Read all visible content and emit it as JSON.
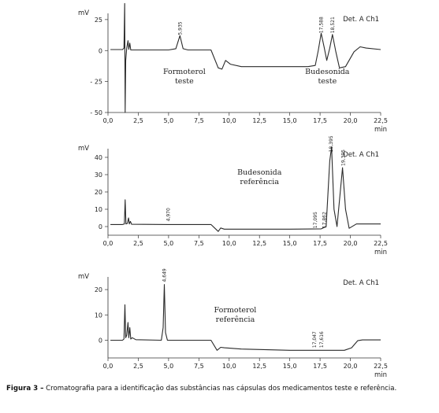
{
  "chart_data": [
    {
      "type": "line",
      "y_unit": "mV",
      "x_unit": "min",
      "detector": "Det. A Ch1",
      "xlim": [
        0,
        22.5
      ],
      "ylim": [
        -50,
        30
      ],
      "x_ticks": [
        "0,0",
        "2,5",
        "5,0",
        "7,5",
        "10,0",
        "12,5",
        "15,0",
        "17,5",
        "20,0",
        "22,5"
      ],
      "y_ticks": [
        {
          "value": 25,
          "label": "25"
        },
        {
          "value": 0,
          "label": "0"
        },
        {
          "value": -25,
          "label": "- 25"
        },
        {
          "value": -50,
          "label": "- 50"
        }
      ],
      "annotations": [
        {
          "lines": [
            "Formoterol",
            "teste"
          ],
          "x": 6.3,
          "y": -19
        },
        {
          "lines": [
            "Budesonida",
            "teste"
          ],
          "x": 18.1,
          "y": -19
        }
      ],
      "peak_labels": [
        {
          "text": "5,935",
          "x": 5.935,
          "y": 12.5
        },
        {
          "text": "17,588",
          "x": 17.588,
          "y": 14
        },
        {
          "text": "18,521",
          "x": 18.521,
          "y": 14
        }
      ],
      "series": [
        {
          "points": [
            [
              0.2,
              0.8
            ],
            [
              1.2,
              0.8
            ],
            [
              1.32,
              2
            ],
            [
              1.38,
              38
            ],
            [
              1.42,
              -50
            ],
            [
              1.46,
              -8
            ],
            [
              1.55,
              2
            ],
            [
              1.65,
              8
            ],
            [
              1.72,
              1
            ],
            [
              1.8,
              6
            ],
            [
              1.88,
              0.5
            ],
            [
              2.3,
              0.5
            ],
            [
              3.5,
              0.5
            ],
            [
              5.0,
              0.5
            ],
            [
              5.6,
              1.5
            ],
            [
              5.935,
              12
            ],
            [
              6.2,
              1.5
            ],
            [
              6.6,
              0.5
            ],
            [
              8.5,
              0.5
            ],
            [
              9.1,
              -14
            ],
            [
              9.4,
              -15
            ],
            [
              9.7,
              -8
            ],
            [
              10.1,
              -11
            ],
            [
              11,
              -13
            ],
            [
              14,
              -13
            ],
            [
              16.5,
              -13
            ],
            [
              17.1,
              -12
            ],
            [
              17.35,
              0
            ],
            [
              17.588,
              14
            ],
            [
              17.85,
              2
            ],
            [
              18.05,
              -8
            ],
            [
              18.3,
              2
            ],
            [
              18.521,
              13
            ],
            [
              18.8,
              -1
            ],
            [
              19.1,
              -14
            ],
            [
              19.6,
              -13
            ],
            [
              20.3,
              -1
            ],
            [
              20.8,
              3
            ],
            [
              21.3,
              2
            ],
            [
              22.5,
              0.8
            ]
          ]
        }
      ]
    },
    {
      "type": "line",
      "y_unit": "mV",
      "x_unit": "min",
      "detector": "Det. A Ch1",
      "xlim": [
        0,
        22.5
      ],
      "ylim": [
        -5,
        45
      ],
      "x_ticks": [
        "0,0",
        "2,5",
        "5,0",
        "7,5",
        "10,0",
        "12,5",
        "15,0",
        "17,5",
        "20,0",
        "22,5"
      ],
      "y_ticks": [
        {
          "value": 40,
          "label": "40"
        },
        {
          "value": 30,
          "label": "30"
        },
        {
          "value": 20,
          "label": "20"
        },
        {
          "value": 10,
          "label": "10"
        },
        {
          "value": 0,
          "label": "0"
        }
      ],
      "annotations": [
        {
          "lines": [
            "Budesonida",
            "referência"
          ],
          "x": 12.5,
          "y": 30
        }
      ],
      "peak_labels": [
        {
          "text": "4,970",
          "x": 4.97,
          "y": 3
        },
        {
          "text": "17,095",
          "x": 17.095,
          "y": -1
        },
        {
          "text": "17,862",
          "x": 17.862,
          "y": -1
        },
        {
          "text": "18,395",
          "x": 18.395,
          "y": 43
        },
        {
          "text": "19,395",
          "x": 19.395,
          "y": 35
        }
      ],
      "series": [
        {
          "points": [
            [
              0.2,
              1.2
            ],
            [
              1.2,
              1.2
            ],
            [
              1.35,
              1.5
            ],
            [
              1.42,
              15.5
            ],
            [
              1.48,
              1.5
            ],
            [
              1.6,
              1.8
            ],
            [
              1.7,
              5
            ],
            [
              1.76,
              1.5
            ],
            [
              1.85,
              3
            ],
            [
              1.95,
              1.3
            ],
            [
              4.97,
              1.2
            ],
            [
              8.5,
              1.2
            ],
            [
              9.1,
              -2.8
            ],
            [
              9.3,
              -0.8
            ],
            [
              9.6,
              -1.5
            ],
            [
              10.5,
              -1.5
            ],
            [
              15,
              -1.5
            ],
            [
              17.6,
              -1.3
            ],
            [
              18.0,
              0
            ],
            [
              18.3,
              38
            ],
            [
              18.45,
              46
            ],
            [
              18.65,
              10
            ],
            [
              18.9,
              0
            ],
            [
              19.1,
              15
            ],
            [
              19.35,
              34
            ],
            [
              19.6,
              10
            ],
            [
              19.9,
              -1
            ],
            [
              20.5,
              1.5
            ],
            [
              22.5,
              1.5
            ]
          ]
        }
      ]
    },
    {
      "type": "line",
      "y_unit": "mV",
      "x_unit": "min",
      "detector": "Det. A Ch1",
      "xlim": [
        0,
        22.5
      ],
      "ylim": [
        -7,
        25
      ],
      "x_ticks": [
        "0,0",
        "2,5",
        "5,0",
        "7,5",
        "10,0",
        "12,5",
        "15,0",
        "17,5",
        "20,0",
        "22,5"
      ],
      "y_ticks": [
        {
          "value": 20,
          "label": "20"
        },
        {
          "value": 10,
          "label": "10"
        },
        {
          "value": 0,
          "label": "0"
        }
      ],
      "annotations": [
        {
          "lines": [
            "Formoterol",
            "referência"
          ],
          "x": 10.5,
          "y": 11
        }
      ],
      "peak_labels": [
        {
          "text": "4,649",
          "x": 4.649,
          "y": 23
        },
        {
          "text": "17,047",
          "x": 17.047,
          "y": -3
        },
        {
          "text": "17,616",
          "x": 17.616,
          "y": -3
        }
      ],
      "series": [
        {
          "points": [
            [
              0.2,
              0
            ],
            [
              1.2,
              0
            ],
            [
              1.32,
              0.5
            ],
            [
              1.4,
              14
            ],
            [
              1.46,
              1
            ],
            [
              1.55,
              2
            ],
            [
              1.65,
              7
            ],
            [
              1.72,
              1
            ],
            [
              1.8,
              5
            ],
            [
              1.88,
              0.5
            ],
            [
              2.0,
              1
            ],
            [
              2.3,
              0.2
            ],
            [
              4.4,
              0
            ],
            [
              4.55,
              5
            ],
            [
              4.649,
              22
            ],
            [
              4.75,
              3
            ],
            [
              4.9,
              0
            ],
            [
              8.5,
              0
            ],
            [
              9.0,
              -4
            ],
            [
              9.3,
              -2.8
            ],
            [
              9.6,
              -3
            ],
            [
              11,
              -3.5
            ],
            [
              15,
              -4
            ],
            [
              19.5,
              -4
            ],
            [
              20.1,
              -3
            ],
            [
              20.6,
              -0.2
            ],
            [
              21.0,
              0.1
            ],
            [
              22.5,
              0.1
            ]
          ]
        }
      ]
    }
  ],
  "caption": {
    "label": "Figura 3 –",
    "text": " Cromatografia para a identificação das substâncias nas cápsulas dos medicamentos teste e referência."
  }
}
